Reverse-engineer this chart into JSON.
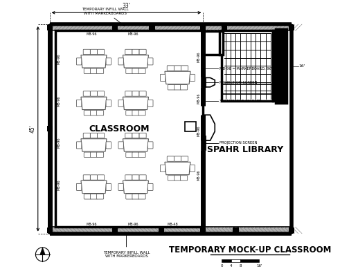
{
  "title": "TEMPORARY MOCK-UP CLASSROOM",
  "subtitle": "SPAHR LIBRARY",
  "classroom_label": "CLASSROOM",
  "bg_color": "#ffffff",
  "wall_color": "#000000",
  "gray_wall": "#b0b0b0",
  "light_gray": "#d8d8d8"
}
